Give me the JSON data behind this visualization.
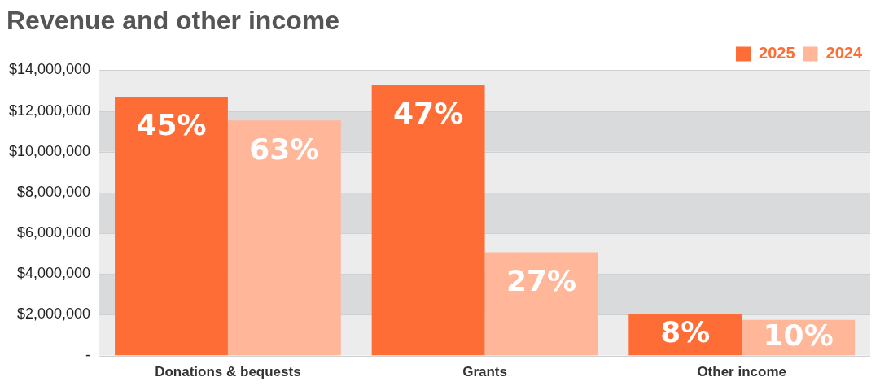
{
  "chart_data": {
    "type": "bar",
    "title": "Revenue and other income",
    "categories": [
      "Donations & bequests",
      "Grants",
      "Other income"
    ],
    "series": [
      {
        "name": "2025",
        "color": "#ff6d36",
        "values": [
          12700000,
          13280000,
          2050000
        ]
      },
      {
        "name": "2024",
        "color": "#ffb699",
        "values": [
          11530000,
          5070000,
          1750000
        ]
      }
    ],
    "annotations": [
      {
        "text": "45%",
        "x": "Donations & bequests",
        "y": 12700000
      },
      {
        "text": "63%",
        "x": "Donations & bequests",
        "y": 11530000
      },
      {
        "text": "47%",
        "x": "Grants",
        "y": 13280000
      },
      {
        "text": "27%",
        "x": "Grants",
        "y": 5070000
      },
      {
        "text": "8%",
        "x": "Other income",
        "y": 2050000
      },
      {
        "text": "10%",
        "x": "Other income",
        "y": 1750000
      }
    ],
    "ylim": [
      0,
      14000000
    ],
    "yticks": [
      {
        "value": 0,
        "label": "-"
      },
      {
        "value": 2000000,
        "label": "$2,000,000"
      },
      {
        "value": 4000000,
        "label": "$4,000,000"
      },
      {
        "value": 6000000,
        "label": "$6,000,000"
      },
      {
        "value": 8000000,
        "label": "$8,000,000"
      },
      {
        "value": 10000000,
        "label": "$10,000,000"
      },
      {
        "value": 12000000,
        "label": "$12,000,000"
      },
      {
        "value": 14000000,
        "label": "$14,000,000"
      }
    ],
    "grid": "y",
    "legend": "top right"
  }
}
